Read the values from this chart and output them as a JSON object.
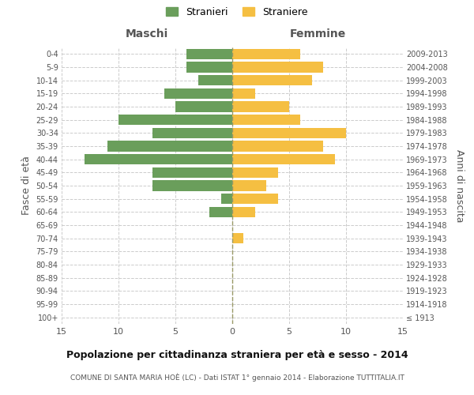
{
  "age_groups": [
    "100+",
    "95-99",
    "90-94",
    "85-89",
    "80-84",
    "75-79",
    "70-74",
    "65-69",
    "60-64",
    "55-59",
    "50-54",
    "45-49",
    "40-44",
    "35-39",
    "30-34",
    "25-29",
    "20-24",
    "15-19",
    "10-14",
    "5-9",
    "0-4"
  ],
  "birth_years": [
    "≤ 1913",
    "1914-1918",
    "1919-1923",
    "1924-1928",
    "1929-1933",
    "1934-1938",
    "1939-1943",
    "1944-1948",
    "1949-1953",
    "1954-1958",
    "1959-1963",
    "1964-1968",
    "1969-1973",
    "1974-1978",
    "1979-1983",
    "1984-1988",
    "1989-1993",
    "1994-1998",
    "1999-2003",
    "2004-2008",
    "2009-2013"
  ],
  "males": [
    0,
    0,
    0,
    0,
    0,
    0,
    0,
    0,
    2,
    1,
    7,
    7,
    13,
    11,
    7,
    10,
    5,
    6,
    3,
    4,
    4
  ],
  "females": [
    0,
    0,
    0,
    0,
    0,
    0,
    1,
    0,
    2,
    4,
    3,
    4,
    9,
    8,
    10,
    6,
    5,
    2,
    7,
    8,
    6
  ],
  "male_color": "#6a9e5b",
  "female_color": "#f5bf42",
  "background_color": "#ffffff",
  "grid_color": "#cccccc",
  "title": "Popolazione per cittadinanza straniera per età e sesso - 2014",
  "subtitle": "COMUNE DI SANTA MARIA HOÈ (LC) - Dati ISTAT 1° gennaio 2014 - Elaborazione TUTTITALIA.IT",
  "xlabel_left": "Maschi",
  "xlabel_right": "Femmine",
  "ylabel_left": "Fasce di età",
  "ylabel_right": "Anni di nascita",
  "legend_male": "Stranieri",
  "legend_female": "Straniere",
  "xlim": 15,
  "bar_height": 0.8
}
